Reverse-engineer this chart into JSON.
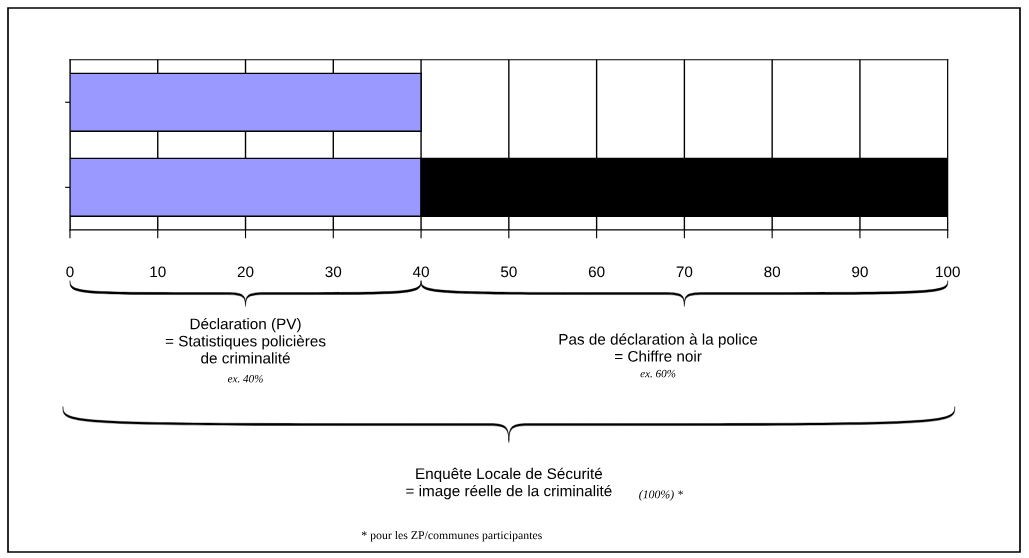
{
  "chart_data": {
    "type": "bar",
    "orientation": "horizontal",
    "stacked": true,
    "categories": [
      null,
      null
    ],
    "series": [
      {
        "color": "#9999ff",
        "values": [
          40,
          40
        ]
      },
      {
        "color": "#000000",
        "values": [
          null,
          60
        ]
      }
    ],
    "xlim": [
      0,
      100
    ],
    "xticks": [
      0,
      10,
      20,
      30,
      40,
      50,
      60,
      70,
      80,
      90,
      100
    ],
    "grid": "x",
    "tick_labels": "x",
    "annotations": [
      "Déclaration (PV)\n= Statistiques policières\nde criminalité",
      "ex. 40%",
      "Pas de déclaration à la police\n= Chiffre noir",
      "ex. 60%",
      "Enquête Locale de Sécurité\n= image réelle de la criminalité",
      "(100%) *",
      "* pour les ZP/communes participantes"
    ]
  }
}
